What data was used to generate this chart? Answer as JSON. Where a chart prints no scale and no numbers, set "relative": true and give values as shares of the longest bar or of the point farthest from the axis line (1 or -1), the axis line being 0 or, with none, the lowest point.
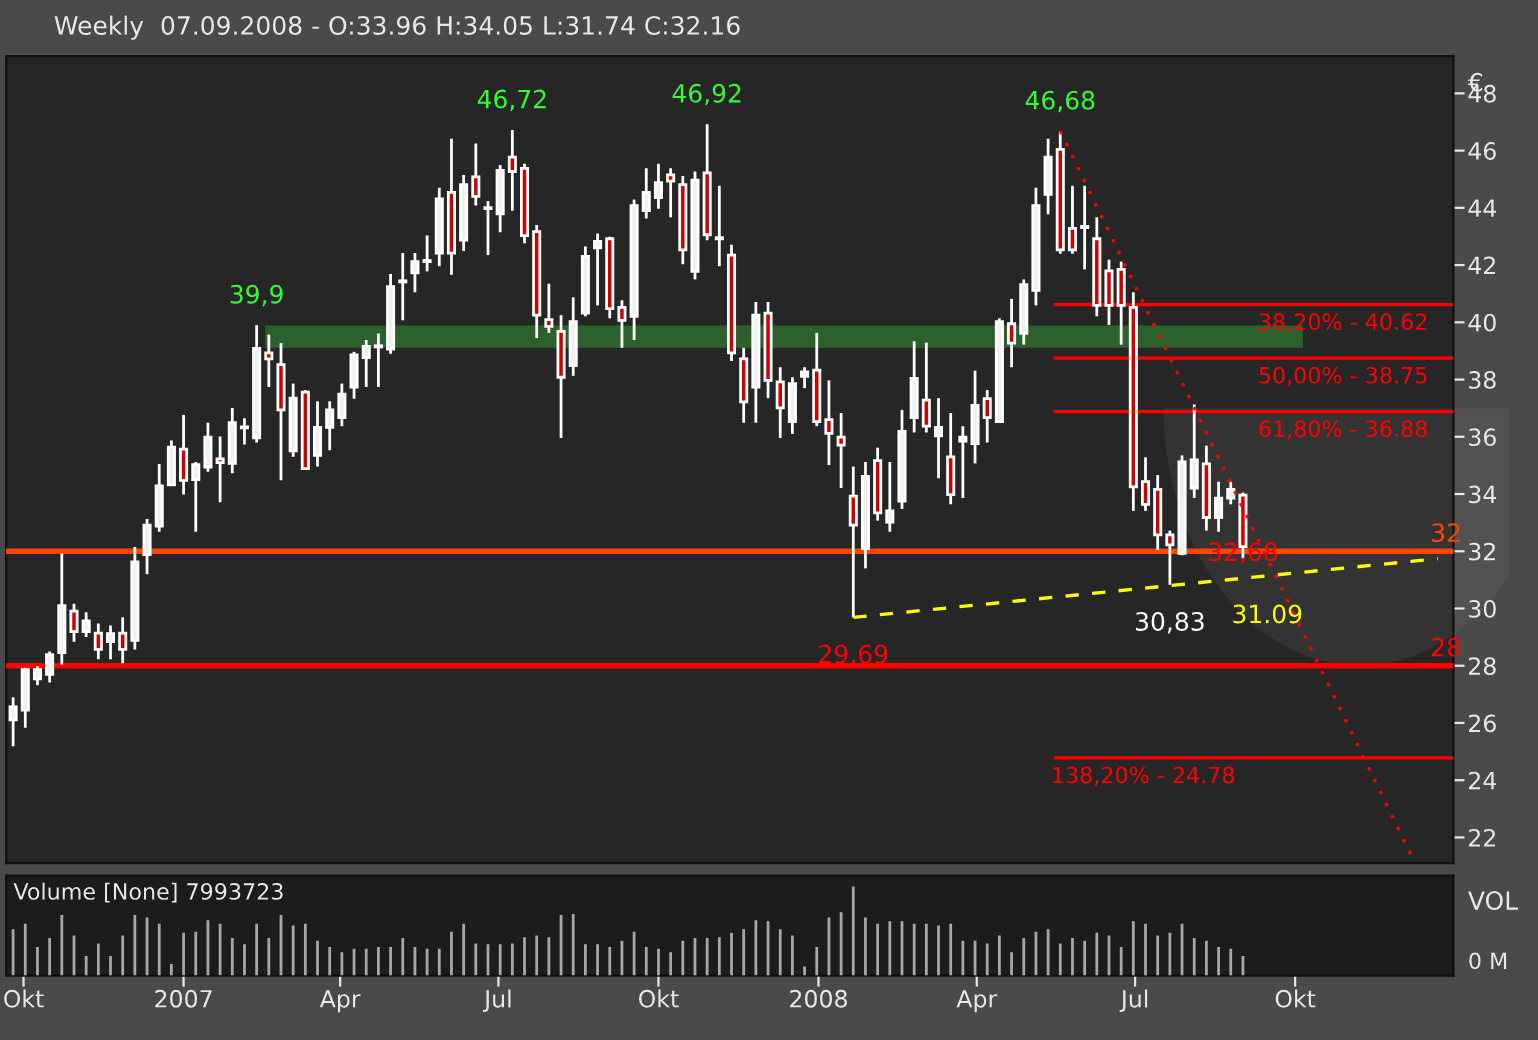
{
  "chart_data": [
    {
      "type": "candlestick",
      "title": "Weekly  07.09.2008 - O:33.96 H:34.05 L:31.74 C:32.16",
      "ylabel": "€",
      "x": [
        "2006-09-25",
        "2006-10-02",
        "2006-10-09",
        "2006-10-16",
        "2006-10-23",
        "2006-10-30",
        "2006-11-06",
        "2006-11-13",
        "2006-11-20",
        "2006-11-27",
        "2006-12-04",
        "2006-12-11",
        "2006-12-18",
        "2006-12-25",
        "2007-01-01",
        "2007-01-08",
        "2007-01-15",
        "2007-01-22",
        "2007-01-29",
        "2007-02-05",
        "2007-02-12",
        "2007-02-19",
        "2007-02-26",
        "2007-03-05",
        "2007-03-12",
        "2007-03-19",
        "2007-03-26",
        "2007-04-02",
        "2007-04-09",
        "2007-04-16",
        "2007-04-23",
        "2007-04-30",
        "2007-05-07",
        "2007-05-14",
        "2007-05-21",
        "2007-05-28",
        "2007-06-04",
        "2007-06-11",
        "2007-06-18",
        "2007-06-25",
        "2007-07-02",
        "2007-07-09",
        "2007-07-16",
        "2007-07-23",
        "2007-07-30",
        "2007-08-06",
        "2007-08-13",
        "2007-08-20",
        "2007-08-27",
        "2007-09-03",
        "2007-09-10",
        "2007-09-17",
        "2007-09-24",
        "2007-10-01",
        "2007-10-08",
        "2007-10-15",
        "2007-10-22",
        "2007-10-29",
        "2007-11-05",
        "2007-11-12",
        "2007-11-19",
        "2007-11-26",
        "2007-12-03",
        "2007-12-10",
        "2007-12-17",
        "2007-12-24",
        "2007-12-31",
        "2008-01-07",
        "2008-01-14",
        "2008-01-21",
        "2008-01-28",
        "2008-02-04",
        "2008-02-11",
        "2008-02-18",
        "2008-02-25",
        "2008-03-03",
        "2008-03-10",
        "2008-03-17",
        "2008-03-24",
        "2008-03-31",
        "2008-04-07",
        "2008-04-14",
        "2008-04-21",
        "2008-04-28",
        "2008-05-05",
        "2008-05-12",
        "2008-05-19",
        "2008-05-26",
        "2008-06-02",
        "2008-06-09",
        "2008-06-16",
        "2008-06-23",
        "2008-06-30",
        "2008-07-07",
        "2008-07-14",
        "2008-07-21",
        "2008-07-28",
        "2008-08-04",
        "2008-08-11",
        "2008-08-18",
        "2008-08-25",
        "2008-09-01"
      ],
      "ohlc": [
        [
          26.11,
          26.9,
          25.19,
          26.56
        ],
        [
          26.45,
          27.93,
          25.83,
          27.86
        ],
        [
          27.54,
          27.98,
          27.32,
          27.86
        ],
        [
          27.7,
          28.5,
          27.41,
          28.39
        ],
        [
          28.46,
          31.92,
          28.04,
          30.1
        ],
        [
          29.91,
          30.17,
          28.84,
          29.19
        ],
        [
          29.19,
          29.87,
          29.0,
          29.57
        ],
        [
          29.14,
          29.48,
          28.23,
          28.57
        ],
        [
          28.84,
          29.41,
          28.23,
          29.12
        ],
        [
          29.14,
          29.69,
          28.09,
          28.57
        ],
        [
          28.89,
          32.15,
          28.57,
          31.63
        ],
        [
          31.88,
          33.13,
          31.2,
          32.91
        ],
        [
          32.88,
          35.05,
          32.68,
          34.28
        ],
        [
          34.32,
          35.87,
          34.28,
          35.64
        ],
        [
          35.57,
          36.76,
          33.98,
          34.48
        ],
        [
          34.5,
          35.12,
          32.68,
          35.03
        ],
        [
          34.94,
          36.49,
          34.78,
          35.99
        ],
        [
          35.23,
          36.01,
          33.71,
          35.1
        ],
        [
          35.07,
          37.01,
          34.73,
          36.49
        ],
        [
          36.31,
          36.65,
          35.73,
          36.35
        ],
        [
          35.96,
          39.9,
          35.8,
          39.09
        ],
        [
          38.93,
          39.57,
          37.74,
          38.72
        ],
        [
          38.52,
          39.27,
          34.48,
          36.94
        ],
        [
          35.51,
          37.86,
          35.3,
          37.35
        ],
        [
          37.56,
          37.63,
          34.85,
          34.89
        ],
        [
          35.35,
          37.24,
          34.96,
          36.33
        ],
        [
          36.33,
          37.24,
          35.53,
          36.94
        ],
        [
          36.67,
          37.86,
          36.37,
          37.49
        ],
        [
          37.74,
          38.97,
          37.33,
          38.86
        ],
        [
          38.77,
          39.38,
          37.74,
          39.16
        ],
        [
          39.14,
          39.61,
          37.74,
          39.18
        ],
        [
          39.06,
          41.69,
          38.9,
          41.25
        ],
        [
          41.41,
          42.42,
          40.07,
          41.45
        ],
        [
          41.73,
          42.42,
          41.05,
          42.12
        ],
        [
          42.12,
          43.03,
          41.78,
          42.16
        ],
        [
          42.42,
          44.7,
          41.96,
          44.31
        ],
        [
          44.54,
          46.41,
          41.66,
          42.42
        ],
        [
          42.87,
          45.15,
          42.49,
          44.81
        ],
        [
          45.08,
          46.25,
          44.08,
          44.4
        ],
        [
          43.97,
          44.24,
          42.35,
          44.01
        ],
        [
          43.79,
          45.5,
          43.15,
          45.31
        ],
        [
          45.77,
          46.72,
          43.9,
          45.27
        ],
        [
          45.38,
          45.54,
          42.76,
          43.03
        ],
        [
          43.17,
          43.4,
          39.45,
          40.25
        ],
        [
          40.09,
          41.35,
          39.63,
          39.86
        ],
        [
          39.68,
          40.25,
          35.96,
          38.08
        ],
        [
          38.49,
          40.87,
          38.13,
          40.02
        ],
        [
          40.32,
          42.65,
          40.21,
          42.3
        ],
        [
          42.6,
          43.1,
          40.59,
          42.83
        ],
        [
          42.92,
          42.99,
          40.14,
          40.48
        ],
        [
          40.52,
          40.77,
          39.11,
          40.07
        ],
        [
          40.21,
          44.29,
          39.38,
          44.08
        ],
        [
          43.9,
          45.38,
          43.63,
          44.54
        ],
        [
          44.36,
          45.54,
          43.97,
          44.88
        ],
        [
          45.15,
          45.38,
          43.67,
          44.93
        ],
        [
          44.81,
          45.11,
          42.03,
          42.53
        ],
        [
          41.78,
          45.27,
          41.5,
          44.97
        ],
        [
          45.22,
          46.92,
          42.87,
          43.06
        ],
        [
          42.92,
          44.77,
          41.96,
          42.96
        ],
        [
          42.35,
          42.71,
          38.65,
          38.93
        ],
        [
          38.72,
          39.11,
          36.49,
          37.22
        ],
        [
          37.74,
          40.71,
          36.49,
          40.25
        ],
        [
          40.32,
          40.71,
          37.35,
          37.97
        ],
        [
          37.92,
          38.43,
          35.96,
          37.01
        ],
        [
          36.53,
          38.08,
          36.1,
          37.86
        ],
        [
          38.11,
          38.43,
          37.7,
          38.27
        ],
        [
          38.33,
          39.63,
          36.37,
          36.53
        ],
        [
          36.6,
          37.97,
          35.01,
          36.12
        ],
        [
          35.99,
          36.83,
          34.21,
          35.71
        ],
        [
          33.93,
          34.96,
          29.69,
          32.91
        ],
        [
          32.09,
          35.12,
          31.4,
          34.62
        ],
        [
          35.17,
          35.62,
          33.07,
          33.34
        ],
        [
          33.02,
          35.12,
          32.68,
          33.41
        ],
        [
          33.75,
          36.94,
          33.48,
          36.19
        ],
        [
          36.67,
          39.34,
          36.15,
          38.04
        ],
        [
          37.28,
          39.29,
          36.15,
          36.37
        ],
        [
          36.03,
          37.35,
          34.55,
          36.33
        ],
        [
          35.3,
          36.83,
          33.64,
          33.98
        ],
        [
          35.85,
          36.37,
          33.86,
          35.99
        ],
        [
          35.76,
          38.31,
          35.07,
          37.1
        ],
        [
          37.33,
          37.63,
          35.8,
          36.67
        ],
        [
          36.53,
          40.14,
          36.5,
          40.02
        ],
        [
          39.95,
          40.82,
          38.43,
          39.27
        ],
        [
          39.61,
          41.5,
          39.22,
          41.32
        ],
        [
          41.12,
          44.7,
          40.59,
          44.08
        ],
        [
          44.47,
          46.41,
          43.78,
          45.77
        ],
        [
          46.04,
          46.68,
          42.4,
          42.53
        ],
        [
          43.28,
          44.77,
          42.4,
          42.53
        ],
        [
          43.31,
          44.77,
          41.85,
          43.35
        ],
        [
          42.92,
          43.67,
          40.21,
          40.59
        ],
        [
          41.8,
          42.19,
          39.91,
          40.59
        ],
        [
          41.85,
          42.12,
          39.22,
          40.59
        ],
        [
          40.52,
          41.05,
          33.41,
          34.25
        ],
        [
          34.43,
          35.28,
          33.41,
          33.64
        ],
        [
          34.16,
          34.66,
          32.04,
          32.57
        ],
        [
          32.57,
          32.72,
          30.83,
          32.22
        ],
        [
          31.93,
          35.35,
          31.86,
          35.12
        ],
        [
          34.21,
          37.13,
          33.86,
          35.19
        ],
        [
          35.05,
          35.69,
          32.72,
          33.18
        ],
        [
          33.18,
          34.43,
          32.68,
          33.86
        ],
        [
          33.86,
          34.43,
          33.64,
          34.16
        ],
        [
          33.96,
          34.05,
          31.74,
          32.16
        ]
      ],
      "series": [
        {
          "type": "line",
          "color": "#ffff00",
          "line_style": "dashed",
          "x": [
            "2008-01-21",
            "2008-12-22"
          ],
          "values": [
            29.69,
            31.74
          ]
        },
        {
          "type": "line",
          "color": "#ff0000",
          "line_style": "dotted",
          "x": [
            "2008-05-19",
            "2008-12-08"
          ],
          "values": [
            46.68,
            21.21
          ]
        }
      ],
      "ref_lines": [
        {
          "axis": "y",
          "value": 32,
          "label": "32",
          "color": "#ff4500"
        },
        {
          "axis": "y",
          "value": 28,
          "label": "28",
          "color": "#ff0000"
        },
        {
          "axis": "y",
          "value": 40.62,
          "color": "#ff0000"
        },
        {
          "axis": "y",
          "value": 38.75,
          "color": "#ff0000"
        },
        {
          "axis": "y",
          "value": 36.88,
          "color": "#ff0000"
        },
        {
          "axis": "y",
          "value": 24.78,
          "color": "#ff0000"
        }
      ],
      "bands": [
        {
          "axis": "y",
          "from": 39.16,
          "to": 39.84,
          "color": "#2e6b2e"
        }
      ],
      "annotations": [
        {
          "text": "39,9",
          "x": "2007-02-12",
          "y": 39.9
        },
        {
          "text": "46,72",
          "x": "2007-07-09",
          "y": 46.72
        },
        {
          "text": "46,92",
          "x": "2007-10-29",
          "y": 46.92
        },
        {
          "text": "46,68",
          "x": "2008-05-19",
          "y": 46.68
        },
        {
          "text": "29,69",
          "x": "2008-01-21",
          "y": 29.69
        },
        {
          "text": "30,83",
          "x": "2008-07-21",
          "y": 30.83
        },
        {
          "text": "31.09",
          "x": "2008-09-15",
          "y": 31.09
        },
        {
          "text": "32,68",
          "x": "2008-09-01",
          "y": 32.68
        },
        {
          "text": "38,20% - 40.62",
          "x": "2008-09-08",
          "y": 40.62
        },
        {
          "text": "50,00% - 38.75",
          "x": "2008-09-08",
          "y": 38.75
        },
        {
          "text": "61,80% - 36.88",
          "x": "2008-09-08",
          "y": 36.88
        },
        {
          "text": "138,20% - 24.78",
          "x": "2008-05-12",
          "y": 24.78
        }
      ],
      "xlim": [
        "2006-09-21",
        "2008-12-31"
      ],
      "ylim": [
        21.1,
        49.3
      ],
      "yticks": [
        22,
        24,
        26,
        28,
        30,
        32,
        34,
        36,
        38,
        40,
        42,
        44,
        46,
        48
      ],
      "tick_labels": "y"
    },
    {
      "type": "bar",
      "title": "Volume [None] 7993723",
      "ylabel": "VOL",
      "relative": true,
      "annotations": [
        "0 M"
      ],
      "x": [
        "2006-09-25",
        "2006-10-02",
        "2006-10-09",
        "2006-10-16",
        "2006-10-23",
        "2006-10-30",
        "2006-11-06",
        "2006-11-13",
        "2006-11-20",
        "2006-11-27",
        "2006-12-04",
        "2006-12-11",
        "2006-12-18",
        "2006-12-25",
        "2007-01-01",
        "2007-01-08",
        "2007-01-15",
        "2007-01-22",
        "2007-01-29",
        "2007-02-05",
        "2007-02-12",
        "2007-02-19",
        "2007-02-26",
        "2007-03-05",
        "2007-03-12",
        "2007-03-19",
        "2007-03-26",
        "2007-04-02",
        "2007-04-09",
        "2007-04-16",
        "2007-04-23",
        "2007-04-30",
        "2007-05-07",
        "2007-05-14",
        "2007-05-21",
        "2007-05-28",
        "2007-06-04",
        "2007-06-11",
        "2007-06-18",
        "2007-06-25",
        "2007-07-02",
        "2007-07-09",
        "2007-07-16",
        "2007-07-23",
        "2007-07-30",
        "2007-08-06",
        "2007-08-13",
        "2007-08-20",
        "2007-08-27",
        "2007-09-03",
        "2007-09-10",
        "2007-09-17",
        "2007-09-24",
        "2007-10-01",
        "2007-10-08",
        "2007-10-15",
        "2007-10-22",
        "2007-10-29",
        "2007-11-05",
        "2007-11-12",
        "2007-11-19",
        "2007-11-26",
        "2007-12-03",
        "2007-12-10",
        "2007-12-17",
        "2007-12-24",
        "2007-12-31",
        "2008-01-07",
        "2008-01-14",
        "2008-01-21",
        "2008-01-28",
        "2008-02-04",
        "2008-02-11",
        "2008-02-18",
        "2008-02-25",
        "2008-03-03",
        "2008-03-10",
        "2008-03-17",
        "2008-03-24",
        "2008-03-31",
        "2008-04-07",
        "2008-04-14",
        "2008-04-21",
        "2008-04-28",
        "2008-05-05",
        "2008-05-12",
        "2008-05-19",
        "2008-05-26",
        "2008-06-02",
        "2008-06-09",
        "2008-06-16",
        "2008-06-23",
        "2008-06-30",
        "2008-07-07",
        "2008-07-14",
        "2008-07-21",
        "2008-07-28",
        "2008-08-04",
        "2008-08-11",
        "2008-08-18",
        "2008-08-25",
        "2008-09-01"
      ],
      "values": [
        0.52,
        0.58,
        0.32,
        0.42,
        0.68,
        0.45,
        0.22,
        0.36,
        0.22,
        0.45,
        0.68,
        0.65,
        0.58,
        0.13,
        0.48,
        0.49,
        0.62,
        0.58,
        0.42,
        0.35,
        0.58,
        0.42,
        0.68,
        0.56,
        0.58,
        0.39,
        0.32,
        0.26,
        0.3,
        0.3,
        0.32,
        0.32,
        0.42,
        0.32,
        0.3,
        0.3,
        0.49,
        0.58,
        0.36,
        0.35,
        0.35,
        0.36,
        0.43,
        0.45,
        0.43,
        0.68,
        0.69,
        0.35,
        0.35,
        0.32,
        0.39,
        0.49,
        0.32,
        0.3,
        0.26,
        0.39,
        0.42,
        0.42,
        0.43,
        0.48,
        0.52,
        0.62,
        0.61,
        0.52,
        0.45,
        0.1,
        0.32,
        0.65,
        0.71,
        1,
        0.65,
        0.58,
        0.61,
        0.61,
        0.58,
        0.58,
        0.56,
        0.58,
        0.39,
        0.39,
        0.36,
        0.45,
        0.26,
        0.42,
        0.49,
        0.52,
        0.36,
        0.42,
        0.39,
        0.48,
        0.45,
        0.32,
        0.61,
        0.58,
        0.45,
        0.48,
        0.58,
        0.42,
        0.39,
        0.32,
        0.3,
        0.22
      ],
      "color": "#a8a8a8",
      "xlim": [
        "2006-09-21",
        "2008-12-31"
      ],
      "xticks": [
        {
          "value": "2006-10-01",
          "label": "Okt"
        },
        {
          "value": "2007-01-01",
          "label": "2007"
        },
        {
          "value": "2007-04-01",
          "label": "Apr"
        },
        {
          "value": "2007-07-01",
          "label": "Jul"
        },
        {
          "value": "2007-10-01",
          "label": "Okt"
        },
        {
          "value": "2008-01-01",
          "label": "2008"
        },
        {
          "value": "2008-04-01",
          "label": "Apr"
        },
        {
          "value": "2008-07-01",
          "label": "Jul"
        },
        {
          "value": "2008-10-01",
          "label": "Okt"
        }
      ],
      "tick_labels": "x"
    }
  ]
}
